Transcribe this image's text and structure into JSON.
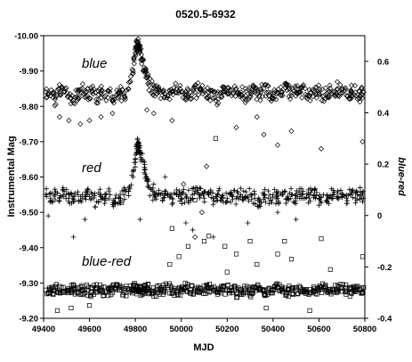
{
  "chart_data": {
    "type": "scatter",
    "title": "0520.5-6932",
    "xlabel": "MJD",
    "ylabel": "Instrumental  Mag",
    "y2label": "blue-red",
    "xlim": [
      49400,
      50800
    ],
    "ylim": [
      -9.2,
      -10.0
    ],
    "y2lim": [
      -0.4,
      0.7
    ],
    "x_ticks": [
      "49400",
      "49600",
      "49800",
      "50000",
      "50200",
      "50400",
      "50600",
      "50800"
    ],
    "y_ticks": [
      "-10.00",
      "-9.90",
      "-9.80",
      "-9.70",
      "-9.60",
      "-9.50",
      "-9.40",
      "-9.30",
      "-9.20"
    ],
    "y2_ticks": [
      "0.6",
      "0.4",
      "0.2",
      "0",
      "-0.2",
      "-0.4"
    ],
    "grid": false,
    "series": [
      {
        "name": "blue",
        "marker": "diamond",
        "axis": "left",
        "baseline": -9.83,
        "scatter": 0.02,
        "outburst": {
          "peak_x": 49810,
          "peak_y": -9.97
        },
        "x": [
          49410,
          49430,
          49450,
          49470,
          49490,
          49510,
          49530,
          49550,
          49570,
          49590,
          49610,
          49630,
          49650,
          49670,
          49690,
          49710,
          49730,
          49750,
          49770,
          49790,
          49800,
          49805,
          49810,
          49815,
          49820,
          49830,
          49840,
          49850,
          49860,
          49880,
          49900,
          49920,
          49940,
          49960,
          49980,
          50000,
          50020,
          50040,
          50060,
          50080,
          50100,
          50120,
          50140,
          50160,
          50180,
          50200,
          50220,
          50240,
          50260,
          50280,
          50300,
          50320,
          50340,
          50360,
          50380,
          50400,
          50420,
          50440,
          50460,
          50480,
          50500,
          50520,
          50540,
          50560,
          50580,
          50600,
          50620,
          50640,
          50660,
          50680,
          50700,
          50720,
          50740,
          50760,
          50780,
          50795
        ],
        "y": [
          -9.84,
          -9.83,
          -9.82,
          -9.85,
          -9.84,
          -9.83,
          -9.81,
          -9.84,
          -9.85,
          -9.83,
          -9.84,
          -9.82,
          -9.84,
          -9.83,
          -9.85,
          -9.82,
          -9.84,
          -9.83,
          -9.85,
          -9.9,
          -9.95,
          -9.97,
          -9.98,
          -9.97,
          -9.96,
          -9.93,
          -9.9,
          -9.88,
          -9.86,
          -9.85,
          -9.84,
          -9.84,
          -9.83,
          -9.84,
          -9.85,
          -9.84,
          -9.83,
          -9.84,
          -9.84,
          -9.85,
          -9.84,
          -9.83,
          -9.84,
          -9.82,
          -9.84,
          -9.84,
          -9.83,
          -9.85,
          -9.84,
          -9.83,
          -9.84,
          -9.84,
          -9.83,
          -9.85,
          -9.84,
          -9.83,
          -9.84,
          -9.84,
          -9.86,
          -9.83,
          -9.84,
          -9.84,
          -9.85,
          -9.83,
          -9.84,
          -9.84,
          -9.83,
          -9.84,
          -9.84,
          -9.85,
          -9.84,
          -9.83,
          -9.84,
          -9.84,
          -9.83,
          -9.84
        ]
      },
      {
        "name": "red",
        "marker": "plus",
        "axis": "left",
        "baseline": -9.54,
        "scatter": 0.02,
        "outburst": {
          "peak_x": 49810,
          "peak_y": -9.69
        },
        "x": [
          49410,
          49430,
          49450,
          49470,
          49490,
          49510,
          49530,
          49550,
          49570,
          49590,
          49610,
          49630,
          49650,
          49670,
          49690,
          49710,
          49730,
          49750,
          49770,
          49790,
          49800,
          49805,
          49810,
          49815,
          49820,
          49830,
          49840,
          49850,
          49860,
          49880,
          49900,
          49920,
          49940,
          49960,
          49980,
          50000,
          50020,
          50040,
          50060,
          50080,
          50100,
          50120,
          50140,
          50160,
          50180,
          50200,
          50220,
          50240,
          50260,
          50280,
          50300,
          50320,
          50340,
          50360,
          50380,
          50400,
          50420,
          50440,
          50460,
          50480,
          50500,
          50520,
          50540,
          50560,
          50580,
          50600,
          50620,
          50640,
          50660,
          50680,
          50700,
          50720,
          50740,
          50760,
          50780,
          50795
        ],
        "y": [
          -9.55,
          -9.54,
          -9.55,
          -9.54,
          -9.56,
          -9.54,
          -9.53,
          -9.55,
          -9.54,
          -9.55,
          -9.54,
          -9.53,
          -9.55,
          -9.54,
          -9.55,
          -9.53,
          -9.54,
          -9.55,
          -9.56,
          -9.6,
          -9.65,
          -9.68,
          -9.69,
          -9.68,
          -9.67,
          -9.65,
          -9.62,
          -9.59,
          -9.57,
          -9.55,
          -9.55,
          -9.54,
          -9.55,
          -9.54,
          -9.55,
          -9.54,
          -9.55,
          -9.54,
          -9.56,
          -9.55,
          -9.54,
          -9.55,
          -9.54,
          -9.55,
          -9.54,
          -9.54,
          -9.55,
          -9.54,
          -9.55,
          -9.54,
          -9.55,
          -9.54,
          -9.53,
          -9.55,
          -9.54,
          -9.55,
          -9.54,
          -9.55,
          -9.54,
          -9.55,
          -9.54,
          -9.55,
          -9.54,
          -9.55,
          -9.55,
          -9.54,
          -9.55,
          -9.54,
          -9.55,
          -9.54,
          -9.55,
          -9.54,
          -9.55,
          -9.54,
          -9.55,
          -9.54
        ]
      },
      {
        "name": "blue-red",
        "marker": "square",
        "axis": "right",
        "baseline": -0.29,
        "scatter": 0.02,
        "outburst": null,
        "x": [
          49410,
          49430,
          49450,
          49470,
          49490,
          49510,
          49530,
          49550,
          49570,
          49590,
          49610,
          49630,
          49650,
          49670,
          49690,
          49710,
          49730,
          49750,
          49770,
          49790,
          49800,
          49810,
          49820,
          49830,
          49840,
          49850,
          49860,
          49880,
          49900,
          49920,
          49940,
          49960,
          49980,
          50000,
          50020,
          50040,
          50060,
          50080,
          50100,
          50120,
          50140,
          50160,
          50180,
          50200,
          50220,
          50240,
          50260,
          50280,
          50300,
          50320,
          50340,
          50360,
          50380,
          50400,
          50420,
          50440,
          50460,
          50480,
          50500,
          50520,
          50540,
          50560,
          50580,
          50600,
          50620,
          50640,
          50660,
          50680,
          50700,
          50720,
          50740,
          50760,
          50780,
          50795
        ],
        "y": [
          -0.29,
          -0.3,
          -0.28,
          -0.29,
          -0.3,
          -0.29,
          -0.28,
          -0.3,
          -0.29,
          -0.29,
          -0.3,
          -0.28,
          -0.29,
          -0.3,
          -0.29,
          -0.28,
          -0.29,
          -0.3,
          -0.29,
          -0.29,
          -0.28,
          -0.29,
          -0.29,
          -0.3,
          -0.29,
          -0.28,
          -0.29,
          -0.3,
          -0.29,
          -0.29,
          -0.28,
          -0.29,
          -0.3,
          -0.29,
          -0.28,
          -0.29,
          -0.29,
          -0.3,
          -0.29,
          -0.28,
          -0.29,
          -0.3,
          -0.29,
          -0.29,
          -0.28,
          -0.3,
          -0.29,
          -0.29,
          -0.3,
          -0.28,
          -0.29,
          -0.29,
          -0.3,
          -0.29,
          -0.28,
          -0.29,
          -0.3,
          -0.29,
          -0.29,
          -0.28,
          -0.29,
          -0.3,
          -0.29,
          -0.29,
          -0.28,
          -0.3,
          -0.29,
          -0.29,
          -0.28,
          -0.29,
          -0.3,
          -0.29,
          -0.29,
          -0.28
        ]
      }
    ],
    "outliers": [
      {
        "series": "blue",
        "axis": "left",
        "x": [
          49470,
          49510,
          49560,
          49600,
          49650,
          49700,
          49850,
          49880,
          49960,
          50010,
          50060,
          50090,
          50110,
          50240,
          50330,
          50360,
          50420,
          50480,
          50610,
          50790
        ],
        "y": [
          -9.77,
          -9.76,
          -9.75,
          -9.76,
          -9.77,
          -9.78,
          -9.79,
          -9.78,
          -9.76,
          -9.58,
          -9.43,
          -9.5,
          -9.63,
          -9.74,
          -9.77,
          -9.72,
          -9.69,
          -9.73,
          -9.68,
          -9.7
        ]
      },
      {
        "series": "red",
        "axis": "left",
        "x": [
          49420,
          49530,
          49580,
          49820,
          49880,
          49930,
          50020,
          50050,
          50140,
          50290,
          50340,
          50420,
          50500,
          50600,
          50790
        ],
        "y": [
          -9.49,
          -9.43,
          -9.48,
          -9.48,
          -9.58,
          -9.6,
          -9.47,
          -9.45,
          -9.43,
          -9.47,
          -9.52,
          -9.5,
          -9.48,
          -9.52,
          -9.53
        ]
      },
      {
        "series": "blue-red",
        "axis": "right",
        "x": [
          49460,
          49520,
          49600,
          49740,
          49950,
          49960,
          49990,
          50030,
          50060,
          50100,
          50120,
          50150,
          50190,
          50200,
          50240,
          50300,
          50330,
          50370,
          50420,
          50450,
          50480,
          50560,
          50610,
          50650,
          50790
        ],
        "y": [
          -0.37,
          -0.36,
          -0.35,
          0.05,
          -0.19,
          -0.05,
          -0.16,
          -0.12,
          0.06,
          -0.1,
          -0.08,
          0.3,
          -0.12,
          -0.22,
          -0.15,
          -0.1,
          -0.19,
          -0.36,
          -0.15,
          -0.1,
          -0.17,
          -0.37,
          -0.09,
          -0.21,
          -0.16
        ]
      }
    ]
  }
}
